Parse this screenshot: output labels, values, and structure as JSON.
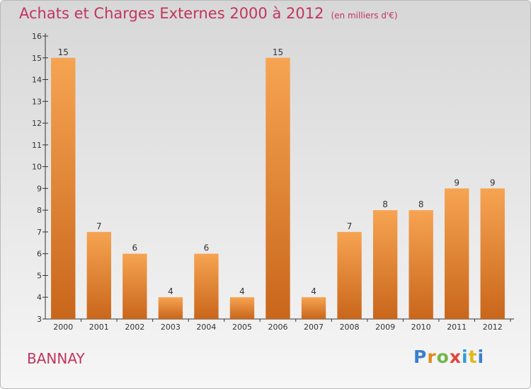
{
  "header": {
    "title": "Achats et Charges Externes 2000 à 2012",
    "unit": "(en milliers d'€)"
  },
  "footer": {
    "commune": "BANNAY",
    "brand_letters": [
      "P",
      "r",
      "o",
      "x",
      "i",
      "t",
      "i"
    ]
  },
  "colors": {
    "title": "#c1355f",
    "bar_light": "#f6a452",
    "bar_dark": "#c9661b",
    "axis": "#333333"
  },
  "chart_data": {
    "type": "bar",
    "title": "Achats et Charges Externes 2000 à 2012",
    "unit_label": "(en milliers d'€)",
    "categories": [
      "2000",
      "2001",
      "2002",
      "2003",
      "2004",
      "2005",
      "2006",
      "2007",
      "2008",
      "2009",
      "2010",
      "2011",
      "2012"
    ],
    "values": [
      15,
      7,
      6,
      4,
      6,
      4,
      15,
      4,
      7,
      8,
      8,
      9,
      9
    ],
    "data_labels": [
      "15",
      "7",
      "6",
      "4",
      "6",
      "4",
      "15",
      "4",
      "7",
      "8",
      "8",
      "9",
      "9"
    ],
    "yticks": [
      "3",
      "4",
      "5",
      "6",
      "7",
      "8",
      "9",
      "10",
      "11",
      "12",
      "13",
      "14",
      "15",
      "16"
    ],
    "ylim": [
      3,
      16
    ],
    "xlabel": "",
    "ylabel": "",
    "grid": false,
    "legend": "none"
  }
}
